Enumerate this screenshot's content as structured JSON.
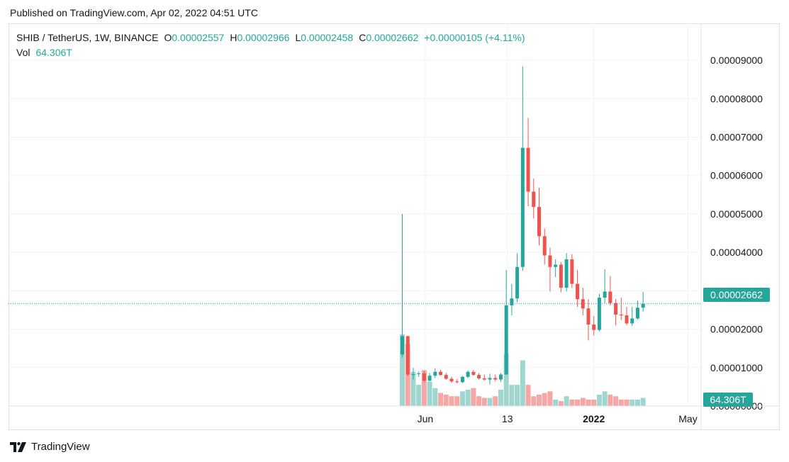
{
  "header": {
    "published": "Published on TradingView.com, Apr 02, 2022 04:51 UTC"
  },
  "legend": {
    "symbol": "SHIB / TetherUS, 1W, BINANCE",
    "o_label": "O",
    "o_value": "0.00002557",
    "h_label": "H",
    "h_value": "0.00002966",
    "l_label": "L",
    "l_value": "0.00002458",
    "c_label": "C",
    "c_value": "0.00002662",
    "change": "+0.00000105 (+4.11%)",
    "vol_label": "Vol",
    "vol_value": "64.306T"
  },
  "price_tag": "0.00002662",
  "vol_tag": "64.306T",
  "brand": {
    "name": "TradingView"
  },
  "colors": {
    "up": "#26a69a",
    "down": "#ef5350",
    "up_vol": "#9fd6cf",
    "down_vol": "#f5a7a5",
    "grid": "#f0f3fa"
  },
  "chart_data": {
    "type": "candlestick",
    "y_range": [
      0,
      9.96e-05
    ],
    "y_ticks": [
      "0.00009000",
      "0.00008000",
      "0.00007000",
      "0.00006000",
      "0.00005000",
      "0.00004000",
      "0.00003000",
      "0.00002000",
      "0.00001000",
      "0.00000000"
    ],
    "y_tick_values": [
      9e-05,
      8e-05,
      7e-05,
      6e-05,
      5e-05,
      4e-05,
      3e-05,
      2e-05,
      1e-05,
      0.0
    ],
    "x_ticks": [
      {
        "label": "Jun",
        "bar": 4.2,
        "bold": false
      },
      {
        "label": "13",
        "bar": 19.2,
        "bold": false
      },
      {
        "label": "2022",
        "bar": 35.0,
        "bold": true
      },
      {
        "label": "May",
        "bar": 52.2,
        "bold": false
      }
    ],
    "last_price": 2.662e-05,
    "candles": [
      {
        "o": 1.34e-05,
        "h": 5e-05,
        "l": 1.26e-05,
        "c": 1.82e-05,
        "v": 0.22
      },
      {
        "o": 1.82e-05,
        "h": 1.82e-05,
        "l": 7.8e-06,
        "c": 8.2e-06,
        "v": 0.19
      },
      {
        "o": 8.2e-06,
        "h": 9.9e-06,
        "l": 6.9e-06,
        "c": 8.3e-06,
        "v": 0.105
      },
      {
        "o": 8.3e-06,
        "h": 9e-06,
        "l": 7.6e-06,
        "c": 8.5e-06,
        "v": 0.065
      },
      {
        "o": 8.5e-06,
        "h": 9.1e-06,
        "l": 6.2e-06,
        "c": 6.6e-06,
        "v": 0.11
      },
      {
        "o": 6.6e-06,
        "h": 8.6e-06,
        "l": 6.4e-06,
        "c": 7.9e-06,
        "v": 0.075
      },
      {
        "o": 7.9e-06,
        "h": 9.8e-06,
        "l": 7.3e-06,
        "c": 8.9e-06,
        "v": 0.055
      },
      {
        "o": 8.9e-06,
        "h": 9.4e-06,
        "l": 7.9e-06,
        "c": 8.1e-06,
        "v": 0.04
      },
      {
        "o": 8.1e-06,
        "h": 8.6e-06,
        "l": 6.8e-06,
        "c": 7.1e-06,
        "v": 0.035
      },
      {
        "o": 7.1e-06,
        "h": 7.6e-06,
        "l": 6e-06,
        "c": 6.4e-06,
        "v": 0.03
      },
      {
        "o": 6.4e-06,
        "h": 7e-06,
        "l": 5.9e-06,
        "c": 6.2e-06,
        "v": 0.03
      },
      {
        "o": 6.2e-06,
        "h": 7.8e-06,
        "l": 6e-06,
        "c": 7.6e-06,
        "v": 0.045
      },
      {
        "o": 7.6e-06,
        "h": 9.3e-06,
        "l": 7.3e-06,
        "c": 8.9e-06,
        "v": 0.05
      },
      {
        "o": 8.9e-06,
        "h": 9.4e-06,
        "l": 7.9e-06,
        "c": 8.1e-06,
        "v": 0.055
      },
      {
        "o": 8.1e-06,
        "h": 8.6e-06,
        "l": 6.9e-06,
        "c": 7.2e-06,
        "v": 0.03
      },
      {
        "o": 7.2e-06,
        "h": 8.2e-06,
        "l": 6.6e-06,
        "c": 6.9e-06,
        "v": 0.025
      },
      {
        "o": 6.9e-06,
        "h": 8.4e-06,
        "l": 5.6e-06,
        "c": 7.3e-06,
        "v": 0.025
      },
      {
        "o": 7.3e-06,
        "h": 8.2e-06,
        "l": 6.4e-06,
        "c": 6.9e-06,
        "v": 0.03
      },
      {
        "o": 6.9e-06,
        "h": 8.6e-06,
        "l": 6.3e-06,
        "c": 8.2e-06,
        "v": 0.05
      },
      {
        "o": 8.2e-06,
        "h": 3.54e-05,
        "l": 8.2e-06,
        "c": 2.62e-05,
        "v": 0.16
      },
      {
        "o": 2.62e-05,
        "h": 3.18e-05,
        "l": 2.36e-05,
        "c": 2.8e-05,
        "v": 0.065
      },
      {
        "o": 2.8e-05,
        "h": 3.98e-05,
        "l": 2.7e-05,
        "c": 3.62e-05,
        "v": 0.065
      },
      {
        "o": 3.62e-05,
        "h": 8.84e-05,
        "l": 3.52e-05,
        "c": 6.72e-05,
        "v": 0.14
      },
      {
        "o": 6.72e-05,
        "h": 7.5e-05,
        "l": 5.2e-05,
        "c": 5.58e-05,
        "v": 0.065
      },
      {
        "o": 5.58e-05,
        "h": 5.92e-05,
        "l": 4.88e-05,
        "c": 5.18e-05,
        "v": 0.03
      },
      {
        "o": 5.18e-05,
        "h": 5.68e-05,
        "l": 4.18e-05,
        "c": 4.42e-05,
        "v": 0.035
      },
      {
        "o": 4.42e-05,
        "h": 4.62e-05,
        "l": 3.68e-05,
        "c": 3.92e-05,
        "v": 0.04
      },
      {
        "o": 3.92e-05,
        "h": 4.12e-05,
        "l": 2.98e-05,
        "c": 3.62e-05,
        "v": 0.045
      },
      {
        "o": 3.62e-05,
        "h": 3.82e-05,
        "l": 3.36e-05,
        "c": 3.68e-05,
        "v": 0.02
      },
      {
        "o": 3.68e-05,
        "h": 3.75e-05,
        "l": 2.96e-05,
        "c": 3.08e-05,
        "v": 0.015
      },
      {
        "o": 3.08e-05,
        "h": 3.98e-05,
        "l": 2.98e-05,
        "c": 3.82e-05,
        "v": 0.03
      },
      {
        "o": 3.82e-05,
        "h": 3.95e-05,
        "l": 3.08e-05,
        "c": 3.18e-05,
        "v": 0.02
      },
      {
        "o": 3.18e-05,
        "h": 3.54e-05,
        "l": 2.58e-05,
        "c": 2.78e-05,
        "v": 0.02
      },
      {
        "o": 2.78e-05,
        "h": 3.08e-05,
        "l": 2.36e-05,
        "c": 2.54e-05,
        "v": 0.025
      },
      {
        "o": 2.54e-05,
        "h": 2.78e-05,
        "l": 1.71e-05,
        "c": 2.12e-05,
        "v": 0.02
      },
      {
        "o": 2.12e-05,
        "h": 2.34e-05,
        "l": 1.84e-05,
        "c": 1.98e-05,
        "v": 0.02
      },
      {
        "o": 1.98e-05,
        "h": 2.92e-05,
        "l": 1.94e-05,
        "c": 2.82e-05,
        "v": 0.035
      },
      {
        "o": 2.82e-05,
        "h": 3.56e-05,
        "l": 2.68e-05,
        "c": 2.98e-05,
        "v": 0.045
      },
      {
        "o": 2.98e-05,
        "h": 3.38e-05,
        "l": 2.62e-05,
        "c": 2.68e-05,
        "v": 0.035
      },
      {
        "o": 2.68e-05,
        "h": 2.78e-05,
        "l": 2.1e-05,
        "c": 2.38e-05,
        "v": 0.03
      },
      {
        "o": 2.38e-05,
        "h": 2.82e-05,
        "l": 2.24e-05,
        "c": 2.36e-05,
        "v": 0.02
      },
      {
        "o": 2.36e-05,
        "h": 2.58e-05,
        "l": 2.1e-05,
        "c": 2.15e-05,
        "v": 0.02
      },
      {
        "o": 2.15e-05,
        "h": 2.58e-05,
        "l": 2.08e-05,
        "c": 2.28e-05,
        "v": 0.02
      },
      {
        "o": 2.28e-05,
        "h": 2.74e-05,
        "l": 2.25e-05,
        "c": 2.56e-05,
        "v": 0.02
      },
      {
        "o": 2.56e-05,
        "h": 2.97e-05,
        "l": 2.46e-05,
        "c": 2.66e-05,
        "v": 0.025
      }
    ]
  }
}
